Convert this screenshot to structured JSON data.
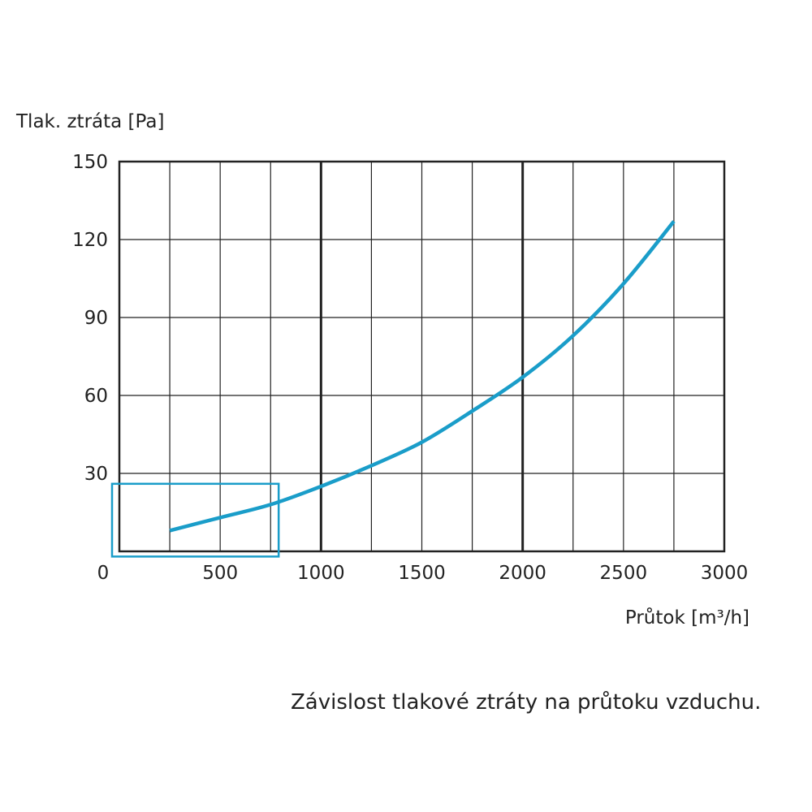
{
  "chart_data": {
    "type": "line",
    "ylabel": "Tlak. ztráta [Pa]",
    "xlabel": "Průtok [m³/h]",
    "xlim": [
      0,
      3000
    ],
    "ylim": [
      0,
      150
    ],
    "x_ticks": [
      0,
      500,
      1000,
      1500,
      2000,
      2500,
      3000
    ],
    "x_tick_labels": [
      "0",
      "500",
      "1000",
      "1500",
      "2000",
      "2500",
      "3000"
    ],
    "y_ticks": [
      30,
      60,
      90,
      120,
      150
    ],
    "y_tick_labels": [
      "30",
      "60",
      "90",
      "120",
      "150"
    ],
    "x_minor_step": 250,
    "y_minor_step": 30,
    "x_major_lines": [
      1000,
      2000
    ],
    "grid": true,
    "line_color": "#1a9dc9",
    "highlight_box": {
      "x": [
        0,
        790
      ],
      "y": [
        -2,
        26
      ],
      "color": "#1a9dc9"
    },
    "series": [
      {
        "x": [
          250,
          500,
          750,
          1000,
          1250,
          1500,
          1750,
          2000,
          2250,
          2500,
          2750
        ],
        "y": [
          8,
          13,
          18,
          25,
          33,
          42,
          54,
          67,
          83,
          103,
          127
        ]
      }
    ]
  },
  "caption": "Závislost tlakové ztráty na průtoku vzduchu."
}
